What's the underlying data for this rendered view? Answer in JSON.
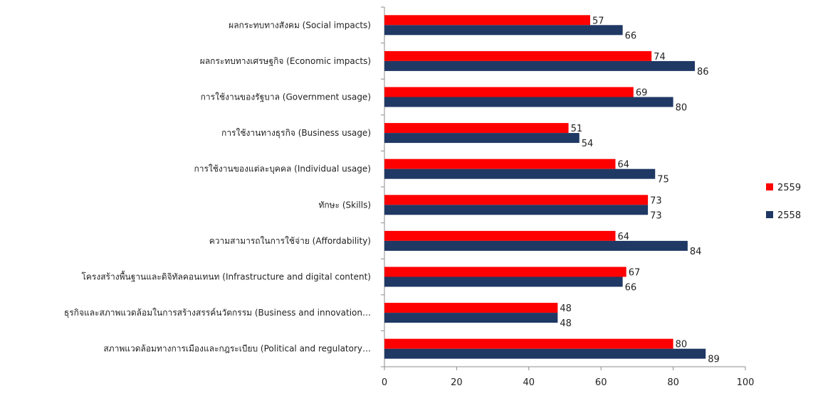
{
  "chart_data": {
    "type": "bar",
    "orientation": "horizontal",
    "categories": [
      "ผลกระทบทางสังคม (Social impacts)",
      "ผลกระทบทางเศรษฐกิจ (Economic impacts)",
      "การใช้งานของรัฐบาล (Government usage)",
      "การใช้งานทางธุรกิจ (Business usage)",
      "การใช้งานของแต่ละบุคคล (Individual usage)",
      "ทักษะ (Skills)",
      "ความสามารถในการใช้จ่าย (Affordability)",
      "โครงสร้างพื้นฐานและดิจิทัลคอนเทนท (Infrastructure and digital content)",
      "ธุรกิจและสภาพแวดล้อมในการสร้างสรรค์นวัตกรรม (Business and innovation…",
      "สภาพแวดล้อมทางการเมืองและกฎระเบียบ (Political and regulatory…"
    ],
    "series": [
      {
        "name": "2559",
        "color": "#ff0000",
        "values": [
          57,
          74,
          69,
          51,
          64,
          73,
          64,
          67,
          48,
          80
        ]
      },
      {
        "name": "2558",
        "color": "#1f3864",
        "values": [
          66,
          86,
          80,
          54,
          75,
          73,
          84,
          66,
          48,
          89
        ]
      }
    ],
    "xlim": [
      0,
      100
    ],
    "xticks": [
      0,
      20,
      40,
      60,
      80,
      100
    ],
    "grid": false,
    "legend_position": "right",
    "title": "",
    "xlabel": "",
    "ylabel": ""
  }
}
